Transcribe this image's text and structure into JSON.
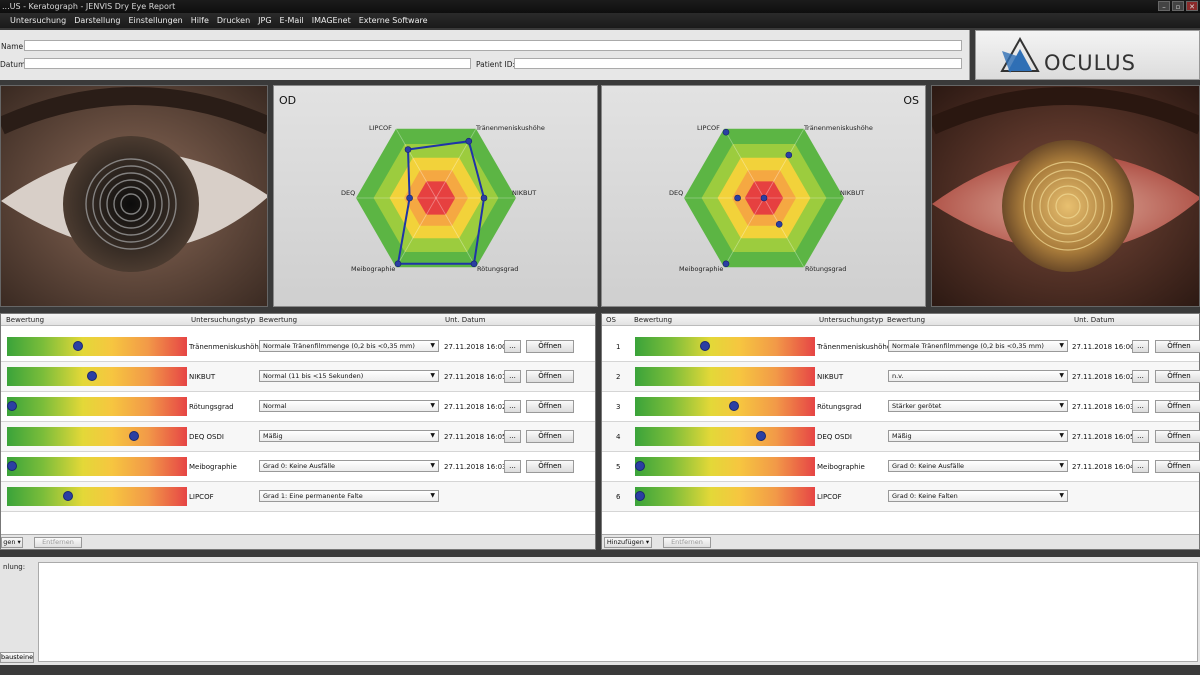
{
  "window": {
    "title": "...US - Keratograph - JENVIS Dry Eye Report"
  },
  "menu": [
    "Untersuchung",
    "Darstellung",
    "Einstellungen",
    "Hilfe",
    "Drucken",
    "JPG",
    "E-Mail",
    "IMAGEnet",
    "Externe Software"
  ],
  "patient": {
    "name_label": "Name:",
    "date_label": "Datum:",
    "id_label": "Patient ID:",
    "name_value": "",
    "date_value": "",
    "id_value": ""
  },
  "logo": {
    "text": "OCULUS",
    "icon": "oculus-logo-icon"
  },
  "radar": {
    "axes": [
      "LIPCOF",
      "Tränenmeniskushöhe",
      "NIKBUT",
      "Rötungsgrad",
      "Meibographie",
      "DEQ"
    ],
    "od": {
      "title": "OD",
      "values": [
        0.7,
        0.82,
        0.6,
        0.95,
        0.95,
        0.33
      ]
    },
    "os": {
      "title": "OS",
      "values": [
        0.95,
        0.62,
        0.0,
        0.38,
        0.95,
        0.33
      ]
    }
  },
  "table": {
    "headers_od": {
      "score": "Bewertung",
      "type": "Untersuchungstyp",
      "rating": "Bewertung",
      "date": "Unt. Datum"
    },
    "headers_os": {
      "eye": "OS",
      "score": "Bewertung",
      "type": "Untersuchungstyp",
      "rating": "Bewertung",
      "date": "Unt. Datum"
    },
    "od_rows": [
      {
        "score": 0.39,
        "type": "Tränenmeniskushöhe",
        "rating": "Normale Tränenfilmmenge (0,2 bis <0,35 mm)",
        "date": "27.11.2018 16:00",
        "dots": "...",
        "open": "Öffnen"
      },
      {
        "score": 0.47,
        "type": "NIKBUT",
        "rating": "Normal (11 bis <15 Sekunden)",
        "date": "27.11.2018 16:01",
        "dots": "...",
        "open": "Öffnen"
      },
      {
        "score": 0.0,
        "type": "Rötungsgrad",
        "rating": "Normal",
        "date": "27.11.2018 16:02",
        "dots": "...",
        "open": "Öffnen"
      },
      {
        "score": 0.72,
        "type": "DEQ OSDI",
        "rating": "Mäßig",
        "date": "27.11.2018 16:05",
        "dots": "...",
        "open": "Öffnen"
      },
      {
        "score": 0.0,
        "type": "Meibographie",
        "rating": "Grad 0: Keine Ausfälle",
        "date": "27.11.2018 16:03",
        "dots": "...",
        "open": "Öffnen"
      },
      {
        "score": 0.33,
        "type": "LIPCOF",
        "rating": "Grad 1: Eine permanente Falte",
        "date": "",
        "dots": "",
        "open": ""
      }
    ],
    "os_rows": [
      {
        "num": "1",
        "score": 0.38,
        "type": "Tränenmeniskushöhe",
        "rating": "Normale Tränenfilmmenge (0,2 bis <0,35 mm)",
        "date": "27.11.2018 16:00",
        "dots": "...",
        "open": "Öffnen"
      },
      {
        "num": "2",
        "score": null,
        "type": "NIKBUT",
        "rating": "n.v.",
        "date": "27.11.2018 16:02",
        "dots": "...",
        "open": "Öffnen"
      },
      {
        "num": "3",
        "score": 0.55,
        "type": "Rötungsgrad",
        "rating": "Stärker gerötet",
        "date": "27.11.2018 16:03",
        "dots": "...",
        "open": "Öffnen"
      },
      {
        "num": "4",
        "score": 0.71,
        "type": "DEQ OSDI",
        "rating": "Mäßig",
        "date": "27.11.2018 16:05",
        "dots": "...",
        "open": "Öffnen"
      },
      {
        "num": "5",
        "score": 0.0,
        "type": "Meibographie",
        "rating": "Grad 0: Keine Ausfälle",
        "date": "27.11.2018 16:04",
        "dots": "...",
        "open": "Öffnen"
      },
      {
        "num": "6",
        "score": 0.0,
        "type": "LIPCOF",
        "rating": "Grad 0: Keine Falten",
        "date": "",
        "dots": "",
        "open": ""
      }
    ],
    "footer": {
      "add_left": "gen",
      "add_right": "Hinzufügen",
      "remove": "Entfernen"
    }
  },
  "notes": {
    "label": "nlung:",
    "button": "bausteine",
    "value": ""
  },
  "colors": {
    "dot": "#2b3fa3",
    "line": "#1f34a8"
  }
}
